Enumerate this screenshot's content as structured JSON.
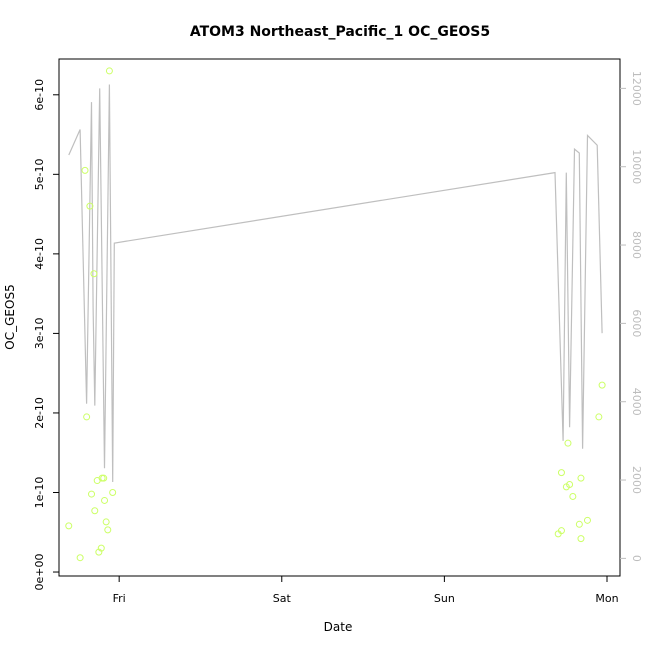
{
  "chart_data": {
    "type": "scatter",
    "title": "ATOM3 Northeast_Pacific_1 OC_GEOS5",
    "xlabel": "Date",
    "ylabel": "OC_GEOS5",
    "x_ticks": [
      "Fri",
      "Sat",
      "Sun",
      "Mon"
    ],
    "x_tick_values": [
      1.0,
      2.0,
      3.0,
      4.0
    ],
    "xlim": [
      0.63,
      4.08
    ],
    "y_ticks": [
      "0e+00",
      "1e-10",
      "2e-10",
      "3e-10",
      "4e-10",
      "5e-10",
      "6e-10"
    ],
    "y_tick_values": [
      0,
      1e-10,
      2e-10,
      3e-10,
      4e-10,
      5e-10,
      6e-10
    ],
    "ylim": [
      -5e-12,
      6.45e-10
    ],
    "y2_ticks": [
      "0",
      "2000",
      "4000",
      "6000",
      "8000",
      "10000",
      "12000"
    ],
    "y2_tick_values": [
      0,
      2000,
      4000,
      6000,
      8000,
      10000,
      12000
    ],
    "y2lim": [
      -450,
      12750
    ],
    "series": [
      {
        "kind": "points",
        "axis": "left",
        "color": "#ccff66",
        "points": [
          {
            "x": 0.69,
            "y": 5.8e-11
          },
          {
            "x": 0.76,
            "y": 1.8e-11
          },
          {
            "x": 0.79,
            "y": 5.05e-10
          },
          {
            "x": 0.8,
            "y": 1.95e-10
          },
          {
            "x": 0.82,
            "y": 4.6e-10
          },
          {
            "x": 0.83,
            "y": 9.8e-11
          },
          {
            "x": 0.845,
            "y": 3.75e-10
          },
          {
            "x": 0.85,
            "y": 7.7e-11
          },
          {
            "x": 0.865,
            "y": 1.15e-10
          },
          {
            "x": 0.875,
            "y": 2.5e-11
          },
          {
            "x": 0.89,
            "y": 3e-11
          },
          {
            "x": 0.895,
            "y": 1.18e-10
          },
          {
            "x": 0.905,
            "y": 1.18e-10
          },
          {
            "x": 0.91,
            "y": 9e-11
          },
          {
            "x": 0.92,
            "y": 6.3e-11
          },
          {
            "x": 0.93,
            "y": 5.3e-11
          },
          {
            "x": 0.94,
            "y": 6.3e-10
          },
          {
            "x": 0.96,
            "y": 1e-10
          },
          {
            "x": 3.7,
            "y": 4.8e-11
          },
          {
            "x": 3.72,
            "y": 5.2e-11
          },
          {
            "x": 3.72,
            "y": 1.25e-10
          },
          {
            "x": 3.75,
            "y": 1.07e-10
          },
          {
            "x": 3.76,
            "y": 1.62e-10
          },
          {
            "x": 3.77,
            "y": 1.1e-10
          },
          {
            "x": 3.79,
            "y": 9.5e-11
          },
          {
            "x": 3.83,
            "y": 6e-11
          },
          {
            "x": 3.84,
            "y": 4.2e-11
          },
          {
            "x": 3.84,
            "y": 1.18e-10
          },
          {
            "x": 3.88,
            "y": 6.5e-11
          },
          {
            "x": 3.95,
            "y": 1.95e-10
          },
          {
            "x": 3.97,
            "y": 2.35e-10
          }
        ]
      },
      {
        "kind": "line",
        "axis": "right",
        "color": "#bfbfbf",
        "points": [
          {
            "x": 0.69,
            "y": 10300
          },
          {
            "x": 0.76,
            "y": 10950
          },
          {
            "x": 0.8,
            "y": 3950
          },
          {
            "x": 0.83,
            "y": 11650
          },
          {
            "x": 0.84,
            "y": 6400
          },
          {
            "x": 0.85,
            "y": 3900
          },
          {
            "x": 0.88,
            "y": 12000
          },
          {
            "x": 0.91,
            "y": 2300
          },
          {
            "x": 0.94,
            "y": 12100
          },
          {
            "x": 0.96,
            "y": 1950
          },
          {
            "x": 0.97,
            "y": 8050
          },
          {
            "x": 3.68,
            "y": 9850
          },
          {
            "x": 3.73,
            "y": 3000
          },
          {
            "x": 3.75,
            "y": 9850
          },
          {
            "x": 3.77,
            "y": 3350
          },
          {
            "x": 3.8,
            "y": 10450
          },
          {
            "x": 3.83,
            "y": 10350
          },
          {
            "x": 3.85,
            "y": 2800
          },
          {
            "x": 3.88,
            "y": 10800
          },
          {
            "x": 3.94,
            "y": 10550
          },
          {
            "x": 3.97,
            "y": 5750
          }
        ]
      }
    ]
  }
}
